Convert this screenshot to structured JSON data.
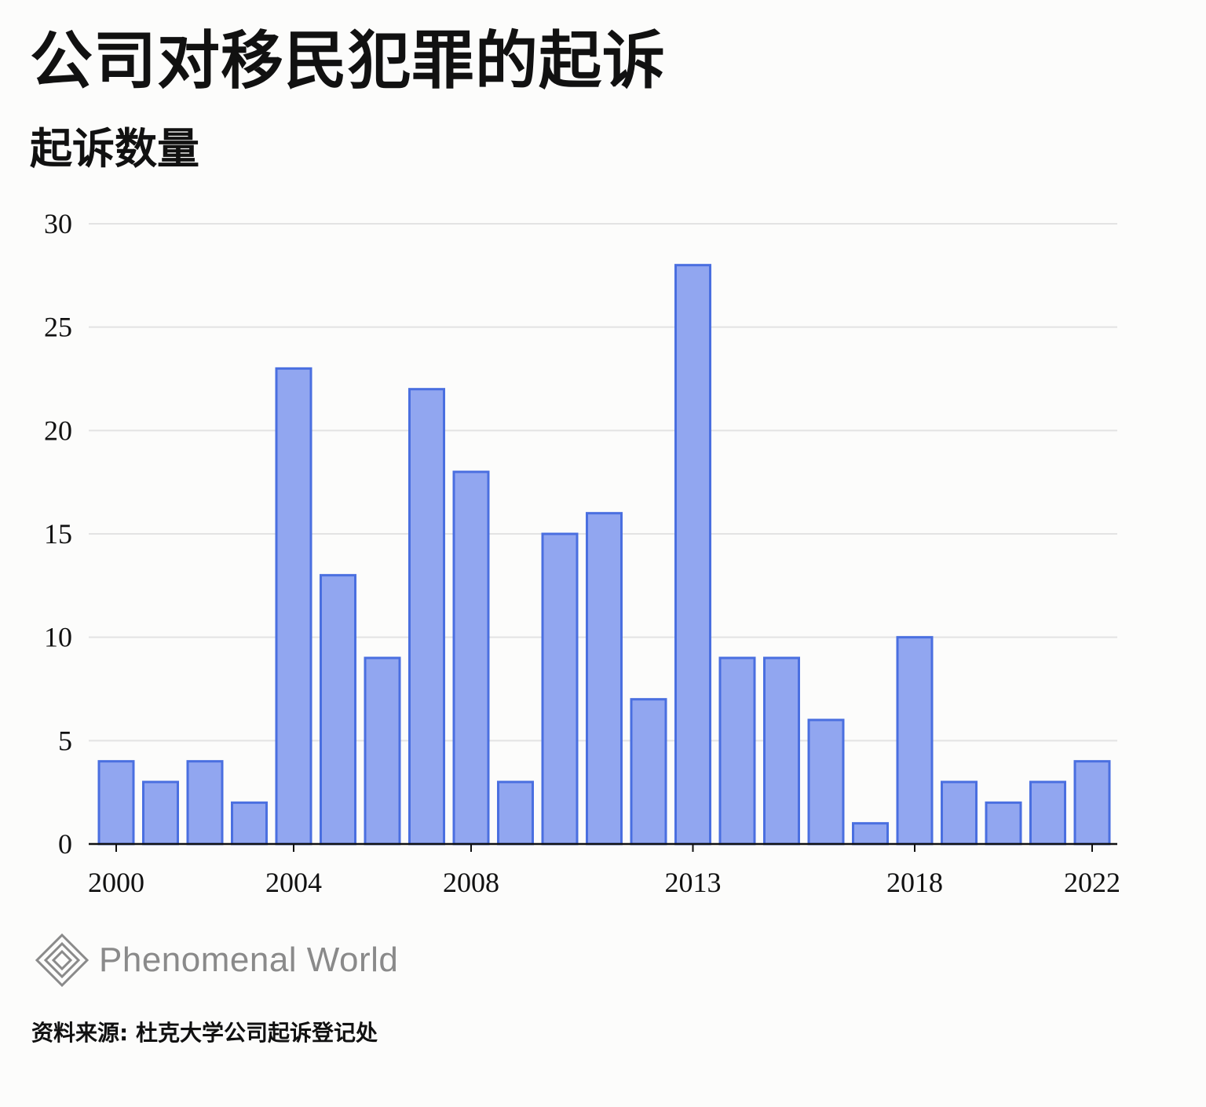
{
  "header": {
    "title": "公司对移民犯罪的起诉",
    "subtitle": "起诉数量"
  },
  "chart_data": {
    "type": "bar",
    "title": "公司对移民犯罪的起诉",
    "ylabel": "起诉数量",
    "xlabel": "",
    "categories": [
      "2000",
      "2001",
      "2002",
      "2003",
      "2004",
      "2005",
      "2006",
      "2007",
      "2008",
      "2009",
      "2010",
      "2011",
      "2012",
      "2013",
      "2014",
      "2015",
      "2016",
      "2017",
      "2018",
      "2019",
      "2020",
      "2021",
      "2022"
    ],
    "values": [
      4,
      3,
      4,
      2,
      23,
      13,
      9,
      22,
      18,
      3,
      15,
      16,
      7,
      28,
      9,
      9,
      6,
      1,
      10,
      3,
      2,
      3,
      4
    ],
    "ylim": [
      0,
      30
    ],
    "yticks": [
      0,
      5,
      10,
      15,
      20,
      25,
      30
    ],
    "xtick_labels": [
      "2000",
      "2004",
      "2008",
      "2013",
      "2018",
      "2022"
    ],
    "grid": true,
    "bar_fill": "#91a6f0",
    "bar_stroke": "#4a6fe0"
  },
  "brand": {
    "name": "Phenomenal World",
    "logo_icon": "diamond-logo-icon"
  },
  "footer": {
    "source": "资料来源: 杜克大学公司起诉登记处"
  }
}
